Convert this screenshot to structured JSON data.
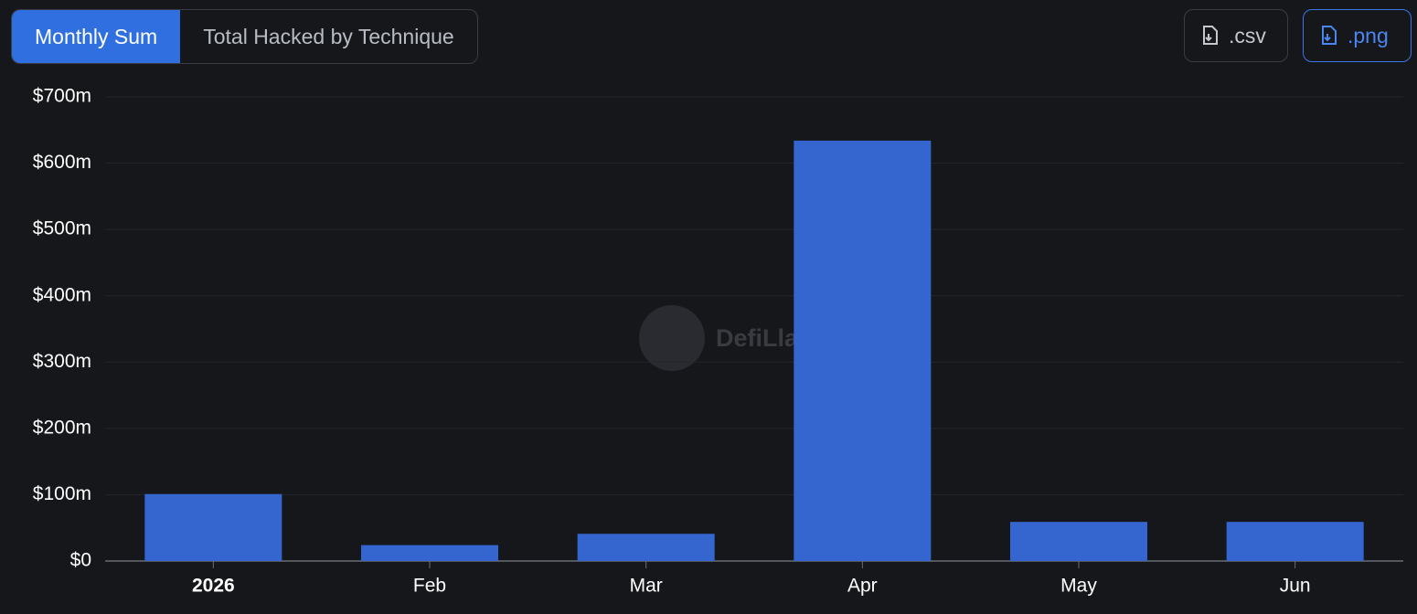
{
  "controls": {
    "tabs": [
      "Monthly Sum",
      "Total Hacked by Technique"
    ],
    "downloads": [
      ".csv",
      ".png"
    ]
  },
  "chart_data": {
    "type": "bar",
    "watermark": "DefiLlama",
    "categories": [
      "2026",
      "Feb",
      "Mar",
      "Apr",
      "May",
      "Jun"
    ],
    "values": [
      101,
      24,
      41,
      634,
      59,
      59
    ],
    "color": "#3566d0",
    "ylim": [
      0,
      700
    ],
    "yticks": [
      {
        "value": 0,
        "label": "$0"
      },
      {
        "value": 100,
        "label": "$100m"
      },
      {
        "value": 200,
        "label": "$200m"
      },
      {
        "value": 300,
        "label": "$300m"
      },
      {
        "value": 400,
        "label": "$400m"
      },
      {
        "value": 500,
        "label": "$500m"
      },
      {
        "value": 600,
        "label": "$600m"
      },
      {
        "value": 700,
        "label": "$700m"
      }
    ],
    "grid": true
  }
}
